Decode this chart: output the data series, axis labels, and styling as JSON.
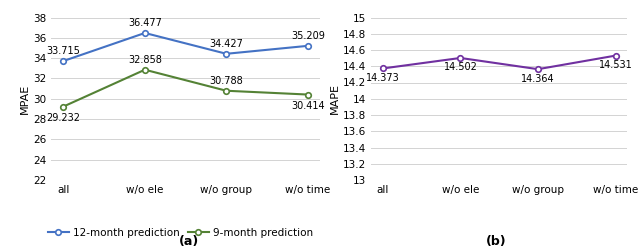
{
  "categories": [
    "all",
    "w/o ele",
    "w/o group",
    "w/o time"
  ],
  "ax1": {
    "series": [
      {
        "label": "12-month prediction",
        "values": [
          33.715,
          36.477,
          34.427,
          35.209
        ],
        "color": "#4472C4",
        "marker": "o"
      },
      {
        "label": "9-month prediction",
        "values": [
          29.232,
          32.858,
          30.788,
          30.414
        ],
        "color": "#548235",
        "marker": "o"
      }
    ],
    "ylabel": "MPAE",
    "ylim": [
      22,
      38
    ],
    "yticks": [
      22,
      24,
      26,
      28,
      30,
      32,
      34,
      36,
      38
    ],
    "subtitle": "(a)"
  },
  "ax2": {
    "series": [
      {
        "label": "12-month prediction",
        "values": [
          14.373,
          14.502,
          14.364,
          14.531
        ],
        "color": "#7030A0",
        "marker": "o"
      }
    ],
    "ylabel": "MAPE",
    "ylim": [
      13,
      15
    ],
    "yticks": [
      13,
      13.2,
      13.4,
      13.6,
      13.8,
      14,
      14.2,
      14.4,
      14.6,
      14.8,
      15
    ],
    "subtitle": "(b)"
  },
  "legend_fontsize": 7.5,
  "annotation_fontsize": 7,
  "tick_fontsize": 7.5,
  "label_fontsize": 8
}
